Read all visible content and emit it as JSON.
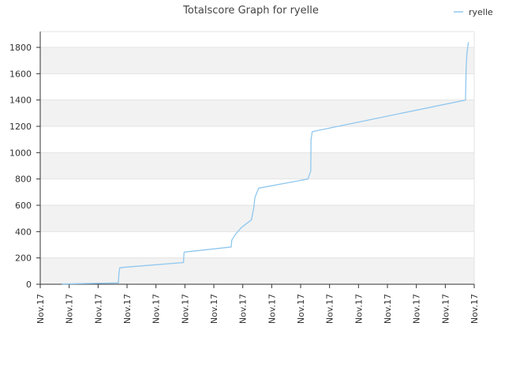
{
  "chart_data": {
    "type": "line",
    "title": "Totalscore Graph for ryelle",
    "xlabel": "",
    "ylabel": "",
    "ylim": [
      0,
      1920
    ],
    "yticks": [
      0,
      200,
      400,
      600,
      800,
      1000,
      1200,
      1400,
      1600,
      1800
    ],
    "xlim": [
      0,
      15
    ],
    "xticks": [
      0,
      1,
      2,
      3,
      4,
      5,
      6,
      7,
      8,
      9,
      10,
      11,
      12,
      13,
      14,
      15
    ],
    "xtick_labels": [
      "Nov.17",
      "Nov.17",
      "Nov.17",
      "Nov.17",
      "Nov.17",
      "Nov.17",
      "Nov.17",
      "Nov.17",
      "Nov.17",
      "Nov.17",
      "Nov.17",
      "Nov.17",
      "Nov.17",
      "Nov.17",
      "Nov.17",
      "Nov.17"
    ],
    "grid": true,
    "legend_position": "top-right",
    "series": [
      {
        "name": "ryelle",
        "color": "#8fc7ef",
        "x": [
          0.75,
          2.05,
          2.7,
          2.72,
          2.75,
          2.85,
          4.95,
          4.97,
          5.0,
          6.6,
          6.62,
          6.75,
          6.95,
          7.3,
          7.38,
          7.42,
          7.55,
          9.25,
          9.35,
          9.36,
          9.4,
          14.7,
          14.72,
          14.75,
          14.8
        ],
        "y": [
          2,
          7,
          10,
          80,
          125,
          128,
          165,
          240,
          245,
          283,
          335,
          380,
          430,
          490,
          580,
          660,
          730,
          800,
          860,
          1100,
          1160,
          1400,
          1640,
          1760,
          1840
        ]
      }
    ]
  }
}
